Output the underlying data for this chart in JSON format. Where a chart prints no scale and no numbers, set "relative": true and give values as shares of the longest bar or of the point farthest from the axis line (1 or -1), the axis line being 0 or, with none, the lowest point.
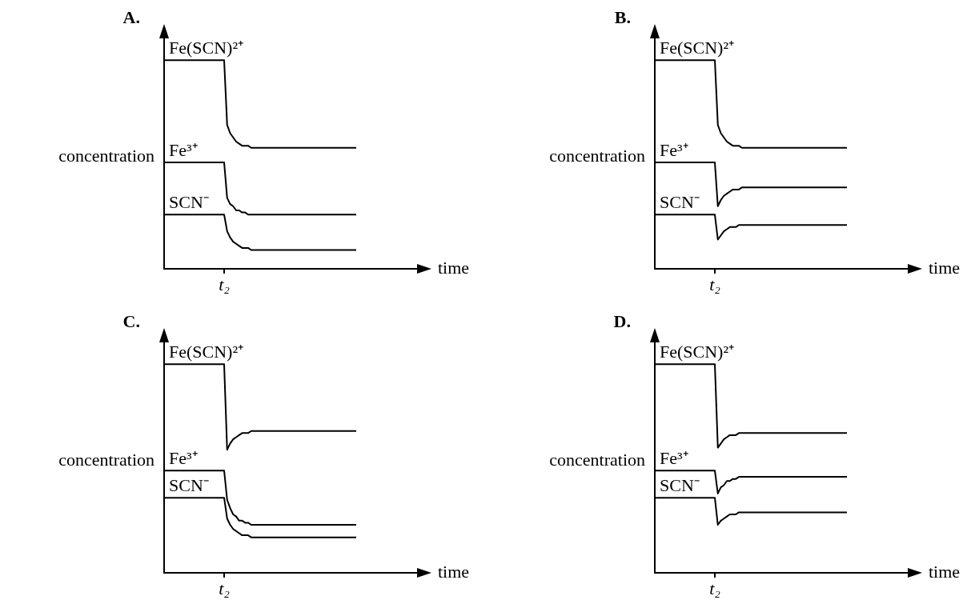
{
  "chart_data": [
    {
      "type": "line",
      "title": "A.",
      "xlabel": "time",
      "ylabel": "concentration",
      "relative": true,
      "marker": "none",
      "annotations": [
        "t₂"
      ],
      "categories": [
        null,
        null,
        null,
        null,
        null,
        null,
        null,
        null,
        null,
        null,
        null,
        null,
        null,
        null,
        null,
        null,
        null,
        null,
        null,
        null,
        null,
        null,
        null,
        null,
        null,
        null,
        null,
        null,
        null,
        null,
        null,
        null,
        null,
        null,
        null,
        null,
        null,
        null,
        null,
        null,
        null,
        null,
        null,
        null,
        null,
        null,
        null,
        null,
        null,
        null,
        null,
        null,
        null,
        null,
        null,
        null,
        null,
        null,
        null,
        null,
        null,
        null,
        null,
        null,
        null
      ],
      "series": [
        {
          "name": "Fe(SCN)²⁺",
          "color": "#000000",
          "values": [
            1,
            1,
            1,
            1,
            1,
            1,
            1,
            1,
            1,
            1,
            1,
            1,
            1,
            1,
            1,
            1,
            1,
            1,
            1,
            1,
            1,
            0.69,
            0.65,
            0.63,
            0.61,
            0.6,
            0.59,
            0.59,
            0.59,
            0.58,
            0.58,
            0.58,
            0.58,
            0.58,
            0.58,
            0.58,
            0.58,
            0.58,
            0.58,
            0.58,
            0.58,
            0.58,
            0.58,
            0.58,
            0.58,
            0.58,
            0.58,
            0.58,
            0.58,
            0.58,
            0.58,
            0.58,
            0.58,
            0.58,
            0.58,
            0.58,
            0.58,
            0.58,
            0.58,
            0.58,
            0.58,
            0.58,
            0.58,
            0.58,
            0.58
          ]
        },
        {
          "name": "Fe³⁺",
          "color": "#000000",
          "values": [
            0.51,
            0.51,
            0.51,
            0.51,
            0.51,
            0.51,
            0.51,
            0.51,
            0.51,
            0.51,
            0.51,
            0.51,
            0.51,
            0.51,
            0.51,
            0.51,
            0.51,
            0.51,
            0.51,
            0.51,
            0.51,
            0.34,
            0.31,
            0.3,
            0.28,
            0.28,
            0.27,
            0.27,
            0.26,
            0.26,
            0.26,
            0.26,
            0.26,
            0.26,
            0.26,
            0.26,
            0.26,
            0.26,
            0.26,
            0.26,
            0.26,
            0.26,
            0.26,
            0.26,
            0.26,
            0.26,
            0.26,
            0.26,
            0.26,
            0.26,
            0.26,
            0.26,
            0.26,
            0.26,
            0.26,
            0.26,
            0.26,
            0.26,
            0.26,
            0.26,
            0.26,
            0.26,
            0.26,
            0.26,
            0.26
          ]
        },
        {
          "name": "SCN⁻",
          "color": "#000000",
          "values": [
            0.26,
            0.26,
            0.26,
            0.26,
            0.26,
            0.26,
            0.26,
            0.26,
            0.26,
            0.26,
            0.26,
            0.26,
            0.26,
            0.26,
            0.26,
            0.26,
            0.26,
            0.26,
            0.26,
            0.26,
            0.26,
            0.18,
            0.15,
            0.13,
            0.12,
            0.11,
            0.1,
            0.1,
            0.1,
            0.09,
            0.09,
            0.09,
            0.09,
            0.09,
            0.09,
            0.09,
            0.09,
            0.09,
            0.09,
            0.09,
            0.09,
            0.09,
            0.09,
            0.09,
            0.09,
            0.09,
            0.09,
            0.09,
            0.09,
            0.09,
            0.09,
            0.09,
            0.09,
            0.09,
            0.09,
            0.09,
            0.09,
            0.09,
            0.09,
            0.09,
            0.09,
            0.09,
            0.09,
            0.09,
            0.09
          ]
        }
      ]
    },
    {
      "type": "line",
      "title": "B.",
      "xlabel": "time",
      "ylabel": "concentration",
      "relative": true,
      "marker": "none",
      "annotations": [
        "t₂"
      ],
      "categories": [
        null,
        null,
        null,
        null,
        null,
        null,
        null,
        null,
        null,
        null,
        null,
        null,
        null,
        null,
        null,
        null,
        null,
        null,
        null,
        null,
        null,
        null,
        null,
        null,
        null,
        null,
        null,
        null,
        null,
        null,
        null,
        null,
        null,
        null,
        null,
        null,
        null,
        null,
        null,
        null,
        null,
        null,
        null,
        null,
        null,
        null,
        null,
        null,
        null,
        null,
        null,
        null,
        null,
        null,
        null,
        null,
        null,
        null,
        null,
        null,
        null,
        null,
        null,
        null,
        null
      ],
      "series": [
        {
          "name": "Fe(SCN)²⁺",
          "color": "#000000",
          "values": [
            1,
            1,
            1,
            1,
            1,
            1,
            1,
            1,
            1,
            1,
            1,
            1,
            1,
            1,
            1,
            1,
            1,
            1,
            1,
            1,
            1,
            0.69,
            0.65,
            0.63,
            0.61,
            0.6,
            0.59,
            0.59,
            0.59,
            0.58,
            0.58,
            0.58,
            0.58,
            0.58,
            0.58,
            0.58,
            0.58,
            0.58,
            0.58,
            0.58,
            0.58,
            0.58,
            0.58,
            0.58,
            0.58,
            0.58,
            0.58,
            0.58,
            0.58,
            0.58,
            0.58,
            0.58,
            0.58,
            0.58,
            0.58,
            0.58,
            0.58,
            0.58,
            0.58,
            0.58,
            0.58,
            0.58,
            0.58,
            0.58,
            0.58
          ]
        },
        {
          "name": "Fe³⁺",
          "color": "#000000",
          "values": [
            0.51,
            0.51,
            0.51,
            0.51,
            0.51,
            0.51,
            0.51,
            0.51,
            0.51,
            0.51,
            0.51,
            0.51,
            0.51,
            0.51,
            0.51,
            0.51,
            0.51,
            0.51,
            0.51,
            0.51,
            0.51,
            0.3,
            0.33,
            0.35,
            0.36,
            0.37,
            0.38,
            0.38,
            0.38,
            0.39,
            0.39,
            0.39,
            0.39,
            0.39,
            0.39,
            0.39,
            0.39,
            0.39,
            0.39,
            0.39,
            0.39,
            0.39,
            0.39,
            0.39,
            0.39,
            0.39,
            0.39,
            0.39,
            0.39,
            0.39,
            0.39,
            0.39,
            0.39,
            0.39,
            0.39,
            0.39,
            0.39,
            0.39,
            0.39,
            0.39,
            0.39,
            0.39,
            0.39,
            0.39,
            0.39
          ]
        },
        {
          "name": "SCN⁻",
          "color": "#000000",
          "values": [
            0.26,
            0.26,
            0.26,
            0.26,
            0.26,
            0.26,
            0.26,
            0.26,
            0.26,
            0.26,
            0.26,
            0.26,
            0.26,
            0.26,
            0.26,
            0.26,
            0.26,
            0.26,
            0.26,
            0.26,
            0.26,
            0.14,
            0.16,
            0.18,
            0.19,
            0.2,
            0.2,
            0.2,
            0.21,
            0.21,
            0.21,
            0.21,
            0.21,
            0.21,
            0.21,
            0.21,
            0.21,
            0.21,
            0.21,
            0.21,
            0.21,
            0.21,
            0.21,
            0.21,
            0.21,
            0.21,
            0.21,
            0.21,
            0.21,
            0.21,
            0.21,
            0.21,
            0.21,
            0.21,
            0.21,
            0.21,
            0.21,
            0.21,
            0.21,
            0.21,
            0.21,
            0.21,
            0.21,
            0.21,
            0.21
          ]
        }
      ]
    },
    {
      "type": "line",
      "title": "C.",
      "xlabel": "time",
      "ylabel": "concentration",
      "relative": true,
      "marker": "none",
      "annotations": [
        "t₂"
      ],
      "categories": [
        null,
        null,
        null,
        null,
        null,
        null,
        null,
        null,
        null,
        null,
        null,
        null,
        null,
        null,
        null,
        null,
        null,
        null,
        null,
        null,
        null,
        null,
        null,
        null,
        null,
        null,
        null,
        null,
        null,
        null,
        null,
        null,
        null,
        null,
        null,
        null,
        null,
        null,
        null,
        null,
        null,
        null,
        null,
        null,
        null,
        null,
        null,
        null,
        null,
        null,
        null,
        null,
        null,
        null,
        null,
        null,
        null,
        null,
        null,
        null,
        null,
        null,
        null,
        null,
        null
      ],
      "series": [
        {
          "name": "Fe(SCN)²⁺",
          "color": "#000000",
          "values": [
            1,
            1,
            1,
            1,
            1,
            1,
            1,
            1,
            1,
            1,
            1,
            1,
            1,
            1,
            1,
            1,
            1,
            1,
            1,
            1,
            1,
            0.59,
            0.62,
            0.64,
            0.65,
            0.66,
            0.67,
            0.67,
            0.67,
            0.68,
            0.68,
            0.68,
            0.68,
            0.68,
            0.68,
            0.68,
            0.68,
            0.68,
            0.68,
            0.68,
            0.68,
            0.68,
            0.68,
            0.68,
            0.68,
            0.68,
            0.68,
            0.68,
            0.68,
            0.68,
            0.68,
            0.68,
            0.68,
            0.68,
            0.68,
            0.68,
            0.68,
            0.68,
            0.68,
            0.68,
            0.68,
            0.68,
            0.68,
            0.68,
            0.68
          ]
        },
        {
          "name": "Fe³⁺",
          "color": "#000000",
          "values": [
            0.49,
            0.49,
            0.49,
            0.49,
            0.49,
            0.49,
            0.49,
            0.49,
            0.49,
            0.49,
            0.49,
            0.49,
            0.49,
            0.49,
            0.49,
            0.49,
            0.49,
            0.49,
            0.49,
            0.49,
            0.49,
            0.35,
            0.31,
            0.28,
            0.27,
            0.25,
            0.25,
            0.24,
            0.24,
            0.23,
            0.23,
            0.23,
            0.23,
            0.23,
            0.23,
            0.23,
            0.23,
            0.23,
            0.23,
            0.23,
            0.23,
            0.23,
            0.23,
            0.23,
            0.23,
            0.23,
            0.23,
            0.23,
            0.23,
            0.23,
            0.23,
            0.23,
            0.23,
            0.23,
            0.23,
            0.23,
            0.23,
            0.23,
            0.23,
            0.23,
            0.23,
            0.23,
            0.23,
            0.23,
            0.23
          ]
        },
        {
          "name": "SCN⁻",
          "color": "#000000",
          "values": [
            0.36,
            0.36,
            0.36,
            0.36,
            0.36,
            0.36,
            0.36,
            0.36,
            0.36,
            0.36,
            0.36,
            0.36,
            0.36,
            0.36,
            0.36,
            0.36,
            0.36,
            0.36,
            0.36,
            0.36,
            0.36,
            0.26,
            0.23,
            0.21,
            0.2,
            0.19,
            0.18,
            0.18,
            0.18,
            0.17,
            0.17,
            0.17,
            0.17,
            0.17,
            0.17,
            0.17,
            0.17,
            0.17,
            0.17,
            0.17,
            0.17,
            0.17,
            0.17,
            0.17,
            0.17,
            0.17,
            0.17,
            0.17,
            0.17,
            0.17,
            0.17,
            0.17,
            0.17,
            0.17,
            0.17,
            0.17,
            0.17,
            0.17,
            0.17,
            0.17,
            0.17,
            0.17,
            0.17,
            0.17,
            0.17
          ]
        }
      ]
    },
    {
      "type": "line",
      "title": "D.",
      "xlabel": "time",
      "ylabel": "concentration",
      "relative": true,
      "marker": "none",
      "annotations": [
        "t₂"
      ],
      "categories": [
        null,
        null,
        null,
        null,
        null,
        null,
        null,
        null,
        null,
        null,
        null,
        null,
        null,
        null,
        null,
        null,
        null,
        null,
        null,
        null,
        null,
        null,
        null,
        null,
        null,
        null,
        null,
        null,
        null,
        null,
        null,
        null,
        null,
        null,
        null,
        null,
        null,
        null,
        null,
        null,
        null,
        null,
        null,
        null,
        null,
        null,
        null,
        null,
        null,
        null,
        null,
        null,
        null,
        null,
        null,
        null,
        null,
        null,
        null,
        null,
        null,
        null,
        null,
        null,
        null
      ],
      "series": [
        {
          "name": "Fe(SCN)²⁺",
          "color": "#000000",
          "values": [
            1,
            1,
            1,
            1,
            1,
            1,
            1,
            1,
            1,
            1,
            1,
            1,
            1,
            1,
            1,
            1,
            1,
            1,
            1,
            1,
            1,
            0.6,
            0.62,
            0.64,
            0.65,
            0.66,
            0.66,
            0.66,
            0.67,
            0.67,
            0.67,
            0.67,
            0.67,
            0.67,
            0.67,
            0.67,
            0.67,
            0.67,
            0.67,
            0.67,
            0.67,
            0.67,
            0.67,
            0.67,
            0.67,
            0.67,
            0.67,
            0.67,
            0.67,
            0.67,
            0.67,
            0.67,
            0.67,
            0.67,
            0.67,
            0.67,
            0.67,
            0.67,
            0.67,
            0.67,
            0.67,
            0.67,
            0.67,
            0.67,
            0.67
          ]
        },
        {
          "name": "Fe³⁺",
          "color": "#000000",
          "values": [
            0.49,
            0.49,
            0.49,
            0.49,
            0.49,
            0.49,
            0.49,
            0.49,
            0.49,
            0.49,
            0.49,
            0.49,
            0.49,
            0.49,
            0.49,
            0.49,
            0.49,
            0.49,
            0.49,
            0.49,
            0.49,
            0.38,
            0.41,
            0.42,
            0.44,
            0.44,
            0.45,
            0.45,
            0.46,
            0.46,
            0.46,
            0.46,
            0.46,
            0.46,
            0.46,
            0.46,
            0.46,
            0.46,
            0.46,
            0.46,
            0.46,
            0.46,
            0.46,
            0.46,
            0.46,
            0.46,
            0.46,
            0.46,
            0.46,
            0.46,
            0.46,
            0.46,
            0.46,
            0.46,
            0.46,
            0.46,
            0.46,
            0.46,
            0.46,
            0.46,
            0.46,
            0.46,
            0.46,
            0.46,
            0.46
          ]
        },
        {
          "name": "SCN⁻",
          "color": "#000000",
          "values": [
            0.36,
            0.36,
            0.36,
            0.36,
            0.36,
            0.36,
            0.36,
            0.36,
            0.36,
            0.36,
            0.36,
            0.36,
            0.36,
            0.36,
            0.36,
            0.36,
            0.36,
            0.36,
            0.36,
            0.36,
            0.36,
            0.23,
            0.25,
            0.26,
            0.27,
            0.28,
            0.28,
            0.28,
            0.29,
            0.29,
            0.29,
            0.29,
            0.29,
            0.29,
            0.29,
            0.29,
            0.29,
            0.29,
            0.29,
            0.29,
            0.29,
            0.29,
            0.29,
            0.29,
            0.29,
            0.29,
            0.29,
            0.29,
            0.29,
            0.29,
            0.29,
            0.29,
            0.29,
            0.29,
            0.29,
            0.29,
            0.29,
            0.29,
            0.29,
            0.29,
            0.29,
            0.29,
            0.29,
            0.29,
            0.29
          ]
        }
      ]
    }
  ]
}
